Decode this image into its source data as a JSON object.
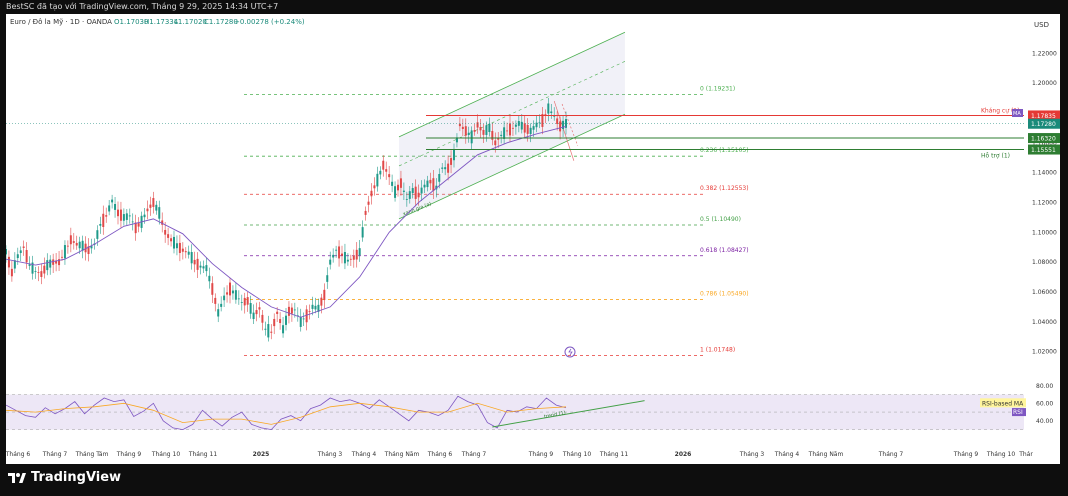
{
  "screenshot_caption": "BestSC đã tạo với TradingView.com, Tháng 9 29, 2025 14:34 UTC+7",
  "brand": "TradingView",
  "chart_data": {
    "type": "candlestick",
    "instrument": "Euro / Đô la Mỹ · 1D · OANDA",
    "ohlc": {
      "open": "O1.17030",
      "high": "H1.17334",
      "low": "L1.17020",
      "close": "C1.17280",
      "change": "+0.00278 (+0.24%)"
    },
    "currency": "USD",
    "y_ticks": [
      "1.22000",
      "1.20000",
      "1.18000",
      "1.16000",
      "1.14000",
      "1.12000",
      "1.10000",
      "1.08000",
      "1.06000",
      "1.04000",
      "1.02000"
    ],
    "ylim": [
      1.007,
      1.237
    ],
    "x_labels": [
      "Tháng 6",
      "Tháng 7",
      "Tháng Tám",
      "Tháng 9",
      "Tháng 10",
      "Tháng 11",
      "2025",
      "Tháng 3",
      "Tháng 4",
      "Tháng Năm",
      "Tháng 6",
      "Tháng 7",
      "Tháng 9",
      "Tháng 10",
      "Tháng 11",
      "2026",
      "Tháng 3",
      "Tháng 4",
      "Tháng Năm",
      "Tháng 7",
      "Tháng 9",
      "Tháng 10",
      "Thár"
    ],
    "price_path": [
      [
        0,
        1.087
      ],
      [
        6,
        1.073
      ],
      [
        12,
        1.084
      ],
      [
        18,
        1.09
      ],
      [
        24,
        1.078
      ],
      [
        30,
        1.074
      ],
      [
        36,
        1.072
      ],
      [
        42,
        1.078
      ],
      [
        48,
        1.08
      ],
      [
        54,
        1.08
      ],
      [
        60,
        1.087
      ],
      [
        66,
        1.095
      ],
      [
        72,
        1.092
      ],
      [
        78,
        1.091
      ],
      [
        84,
        1.088
      ],
      [
        90,
        1.092
      ],
      [
        96,
        1.105
      ],
      [
        102,
        1.111
      ],
      [
        108,
        1.121
      ],
      [
        114,
        1.113
      ],
      [
        120,
        1.11
      ],
      [
        126,
        1.111
      ],
      [
        132,
        1.103
      ],
      [
        138,
        1.107
      ],
      [
        144,
        1.115
      ],
      [
        150,
        1.12
      ],
      [
        156,
        1.113
      ],
      [
        162,
        1.1
      ],
      [
        168,
        1.095
      ],
      [
        174,
        1.091
      ],
      [
        180,
        1.088
      ],
      [
        186,
        1.086
      ],
      [
        192,
        1.08
      ],
      [
        198,
        1.077
      ],
      [
        204,
        1.076
      ],
      [
        210,
        1.062
      ],
      [
        216,
        1.046
      ],
      [
        222,
        1.056
      ],
      [
        228,
        1.062
      ],
      [
        234,
        1.058
      ],
      [
        240,
        1.053
      ],
      [
        246,
        1.054
      ],
      [
        252,
        1.044
      ],
      [
        258,
        1.049
      ],
      [
        264,
        1.035
      ],
      [
        270,
        1.033
      ],
      [
        276,
        1.046
      ],
      [
        282,
        1.035
      ],
      [
        288,
        1.047
      ],
      [
        294,
        1.048
      ],
      [
        300,
        1.04
      ],
      [
        306,
        1.044
      ],
      [
        312,
        1.05
      ],
      [
        318,
        1.049
      ],
      [
        324,
        1.058
      ],
      [
        330,
        1.08
      ],
      [
        336,
        1.088
      ],
      [
        342,
        1.085
      ],
      [
        348,
        1.081
      ],
      [
        354,
        1.083
      ],
      [
        360,
        1.087
      ],
      [
        366,
        1.113
      ],
      [
        372,
        1.126
      ],
      [
        378,
        1.135
      ],
      [
        384,
        1.145
      ],
      [
        390,
        1.138
      ],
      [
        396,
        1.127
      ],
      [
        402,
        1.133
      ],
      [
        408,
        1.122
      ],
      [
        414,
        1.128
      ],
      [
        420,
        1.125
      ],
      [
        426,
        1.131
      ],
      [
        432,
        1.134
      ],
      [
        438,
        1.13
      ],
      [
        444,
        1.143
      ],
      [
        450,
        1.143
      ],
      [
        456,
        1.152
      ],
      [
        462,
        1.172
      ],
      [
        468,
        1.168
      ],
      [
        474,
        1.164
      ],
      [
        480,
        1.172
      ],
      [
        486,
        1.167
      ],
      [
        492,
        1.17
      ],
      [
        498,
        1.16
      ],
      [
        504,
        1.165
      ],
      [
        510,
        1.168
      ],
      [
        516,
        1.17
      ],
      [
        522,
        1.173
      ],
      [
        528,
        1.17
      ],
      [
        534,
        1.168
      ],
      [
        540,
        1.172
      ],
      [
        546,
        1.175
      ],
      [
        552,
        1.183
      ],
      [
        558,
        1.178
      ],
      [
        564,
        1.171
      ],
      [
        570,
        1.173
      ]
    ],
    "ma_path": [
      [
        0,
        1.082
      ],
      [
        30,
        1.078
      ],
      [
        60,
        1.082
      ],
      [
        90,
        1.092
      ],
      [
        120,
        1.104
      ],
      [
        150,
        1.109
      ],
      [
        180,
        1.099
      ],
      [
        210,
        1.079
      ],
      [
        240,
        1.063
      ],
      [
        270,
        1.05
      ],
      [
        300,
        1.043
      ],
      [
        330,
        1.05
      ],
      [
        360,
        1.07
      ],
      [
        390,
        1.1
      ],
      [
        420,
        1.12
      ],
      [
        450,
        1.136
      ],
      [
        480,
        1.152
      ],
      [
        510,
        1.16
      ],
      [
        540,
        1.166
      ],
      [
        570,
        1.171
      ]
    ],
    "fibonacci": [
      {
        "label": "0 (1.19231)",
        "value": 1.19231,
        "color": "#4caf50"
      },
      {
        "label": "0.236 (1.15105)",
        "value": 1.15105,
        "color": "#4caf50"
      },
      {
        "label": "0.382 (1.12553)",
        "value": 1.12553,
        "color": "#e53935"
      },
      {
        "label": "0.5 (1.10490)",
        "value": 1.1049,
        "color": "#43a047"
      },
      {
        "label": "0.618 (1.08427)",
        "value": 1.08427,
        "color": "#7b1fa2"
      },
      {
        "label": "0.786 (1.05490)",
        "value": 1.0549,
        "color": "#f9a825"
      },
      {
        "label": "1 (1.01748)",
        "value": 1.01748,
        "color": "#e53935"
      }
    ],
    "levels": [
      {
        "label": "Kháng cự (1)",
        "value": 1.17835,
        "color": "#e53935"
      },
      {
        "label": "Hỗ trợ (1)",
        "value": 1.15551,
        "color": "#2e7d32"
      },
      {
        "label": "",
        "value": 1.1632,
        "color": "#2e7d32"
      }
    ],
    "price_tags": [
      {
        "text": "1.17835",
        "color": "#e53935"
      },
      {
        "text": "1.17280",
        "color": "#1a8a7a"
      },
      {
        "text": "1.16320",
        "color": "#2e7d32"
      },
      {
        "text": "1.15551",
        "color": "#2e7d32"
      }
    ],
    "trendline_label": "xanh gia (a)",
    "rsi": {
      "y_ticks": [
        "80.00",
        "60.00",
        "40.00"
      ],
      "ylim": [
        25,
        90
      ],
      "legend": [
        "RSI-based MA",
        "RSI"
      ],
      "trend_label": "trend (1)",
      "path": [
        [
          0,
          58
        ],
        [
          10,
          52
        ],
        [
          20,
          46
        ],
        [
          30,
          44
        ],
        [
          40,
          55
        ],
        [
          50,
          48
        ],
        [
          60,
          54
        ],
        [
          70,
          62
        ],
        [
          80,
          48
        ],
        [
          90,
          58
        ],
        [
          100,
          66
        ],
        [
          110,
          62
        ],
        [
          120,
          64
        ],
        [
          130,
          45
        ],
        [
          140,
          51
        ],
        [
          150,
          60
        ],
        [
          160,
          40
        ],
        [
          170,
          32
        ],
        [
          180,
          30
        ],
        [
          190,
          36
        ],
        [
          200,
          52
        ],
        [
          210,
          42
        ],
        [
          220,
          34
        ],
        [
          230,
          44
        ],
        [
          240,
          50
        ],
        [
          250,
          36
        ],
        [
          260,
          32
        ],
        [
          270,
          30
        ],
        [
          280,
          42
        ],
        [
          290,
          46
        ],
        [
          300,
          40
        ],
        [
          310,
          54
        ],
        [
          320,
          58
        ],
        [
          330,
          66
        ],
        [
          340,
          62
        ],
        [
          350,
          64
        ],
        [
          360,
          60
        ],
        [
          370,
          54
        ],
        [
          380,
          64
        ],
        [
          390,
          56
        ],
        [
          400,
          48
        ],
        [
          410,
          40
        ],
        [
          420,
          52
        ],
        [
          430,
          50
        ],
        [
          440,
          46
        ],
        [
          450,
          52
        ],
        [
          460,
          68
        ],
        [
          470,
          62
        ],
        [
          480,
          58
        ],
        [
          490,
          38
        ],
        [
          500,
          32
        ],
        [
          510,
          52
        ],
        [
          520,
          50
        ],
        [
          530,
          56
        ],
        [
          540,
          54
        ],
        [
          550,
          66
        ],
        [
          560,
          58
        ],
        [
          570,
          55
        ]
      ],
      "ma_path": [
        [
          0,
          52
        ],
        [
          30,
          50
        ],
        [
          60,
          54
        ],
        [
          90,
          56
        ],
        [
          120,
          60
        ],
        [
          150,
          52
        ],
        [
          180,
          38
        ],
        [
          210,
          42
        ],
        [
          240,
          42
        ],
        [
          270,
          36
        ],
        [
          300,
          44
        ],
        [
          330,
          56
        ],
        [
          360,
          60
        ],
        [
          390,
          56
        ],
        [
          420,
          50
        ],
        [
          450,
          50
        ],
        [
          480,
          60
        ],
        [
          510,
          50
        ],
        [
          540,
          54
        ],
        [
          570,
          56
        ]
      ]
    }
  }
}
